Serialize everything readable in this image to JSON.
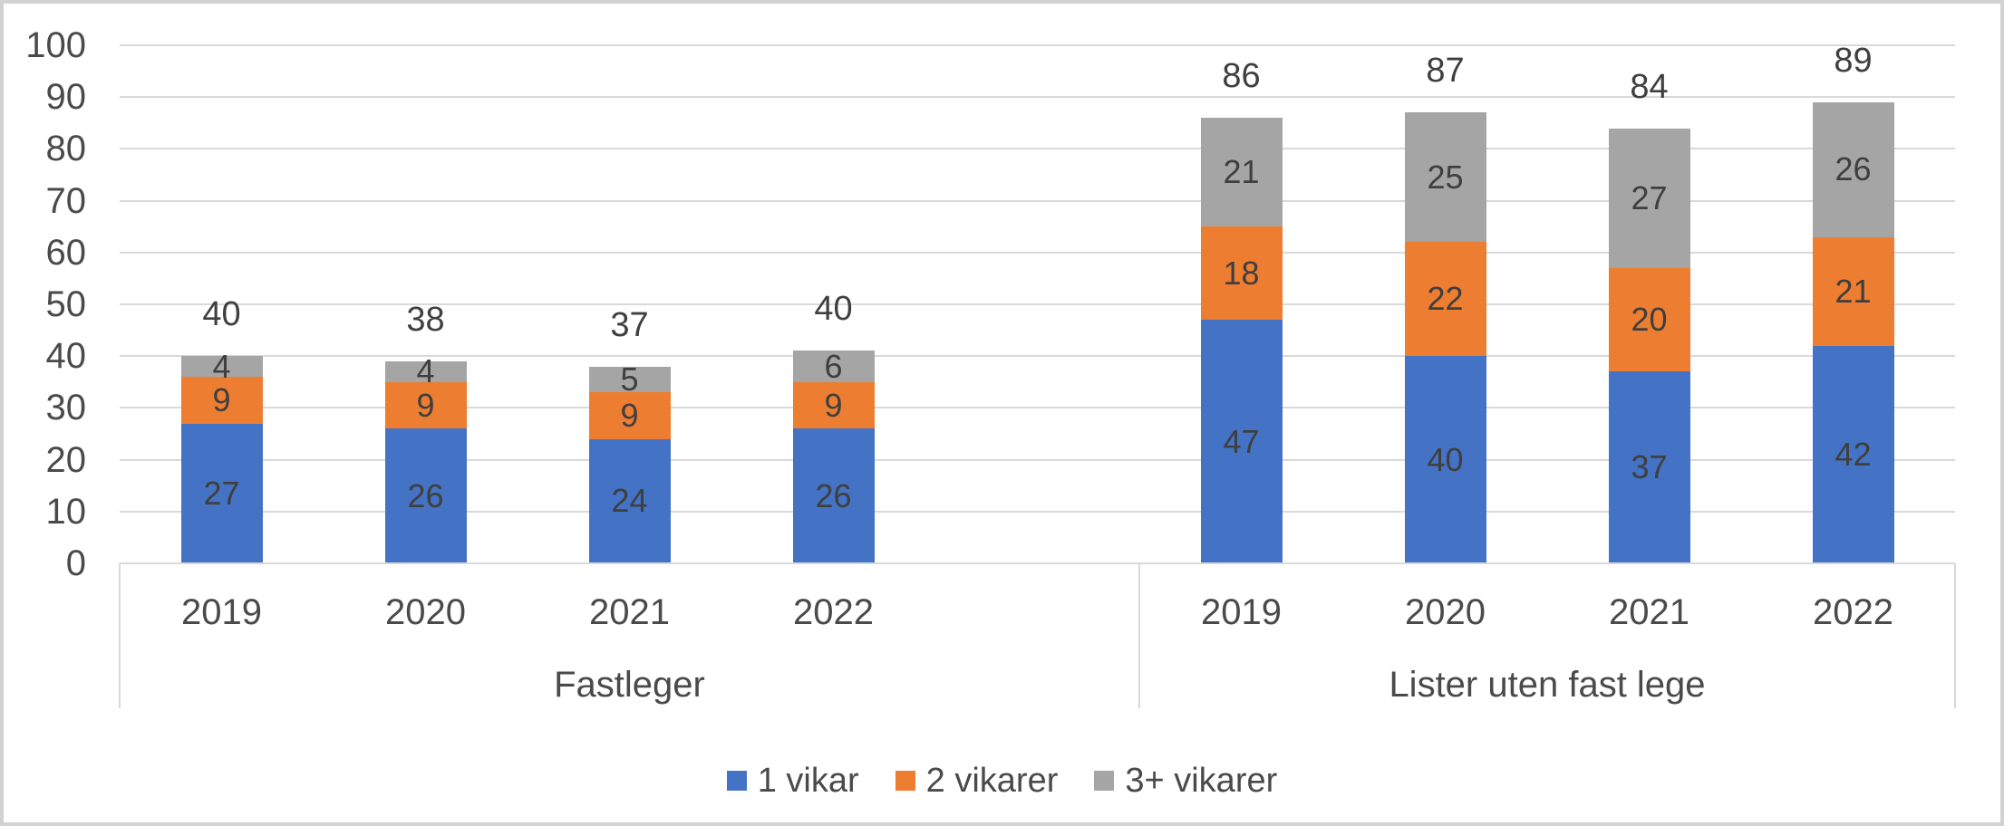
{
  "colors": {
    "series_blue": "#4472C4",
    "series_orange": "#ED7D31",
    "series_gray": "#A5A5A5",
    "grid": "#D9D9D9",
    "axis_text": "#4a4a4a",
    "label_text": "#3f3f3f",
    "frame_border": "#d2d2d2"
  },
  "chart_data": {
    "type": "bar",
    "stacked": true,
    "grid": true,
    "legend_position": "bottom",
    "ylim": [
      0,
      100
    ],
    "ytick_interval": 10,
    "yticks": [
      0,
      10,
      20,
      30,
      40,
      50,
      60,
      70,
      80,
      90,
      100
    ],
    "groups": [
      {
        "label": "Fastleger",
        "categories": [
          "2019",
          "2020",
          "2021",
          "2022"
        ],
        "series": [
          {
            "name": "1 vikar",
            "values": [
              27,
              26,
              24,
              26
            ]
          },
          {
            "name": "2 vikarer",
            "values": [
              9,
              9,
              9,
              9
            ]
          },
          {
            "name": "3+ vikarer",
            "values": [
              4,
              4,
              5,
              6
            ]
          }
        ],
        "totals": [
          40,
          38,
          37,
          40
        ]
      },
      {
        "label": "Lister uten fast lege",
        "categories": [
          "2019",
          "2020",
          "2021",
          "2022"
        ],
        "series": [
          {
            "name": "1 vikar",
            "values": [
              47,
              40,
              37,
              42
            ]
          },
          {
            "name": "2 vikarer",
            "values": [
              18,
              22,
              20,
              21
            ]
          },
          {
            "name": "3+ vikarer",
            "values": [
              21,
              25,
              27,
              26
            ]
          }
        ],
        "totals": [
          86,
          87,
          84,
          89
        ]
      }
    ],
    "legend": [
      {
        "label": "1 vikar",
        "color": "#4472C4"
      },
      {
        "label": "2 vikarer",
        "color": "#ED7D31"
      },
      {
        "label": "3+ vikarer",
        "color": "#A5A5A5"
      }
    ]
  }
}
